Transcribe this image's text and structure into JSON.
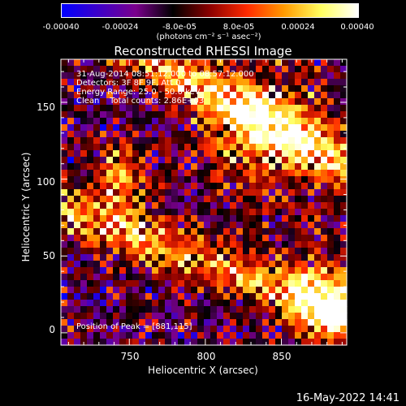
{
  "colorbar": {
    "tick_labels": [
      "-0.00040",
      "-0.00024",
      "-8.0e-05",
      "8.0e-05",
      "0.00024",
      "0.00040"
    ],
    "units": "(photons cm⁻² s⁻¹ asec⁻²)",
    "range": [
      -0.0004,
      0.0004
    ],
    "colors": [
      "#0000ff",
      "#3d00c8",
      "#7a008c",
      "#000000",
      "#8b0000",
      "#ff2a00",
      "#ff9a00",
      "#ffff60",
      "#ffffff"
    ]
  },
  "info": {
    "line1": "31-Aug-2014 08:51:12.000 to 08:57:12.000",
    "line2": "Detectors: 3F 8F 9F, Att 0",
    "line3": "Energy Range: 25.0 - 50.0 keV",
    "line4": "Clean    Total counts: 2.86E+03",
    "peak": "Position of Peak = [881,115]"
  },
  "timestamp": "16-May-2022 14:41",
  "chart_data": {
    "type": "heatmap",
    "title": "Reconstructed RHESSI Image",
    "xlabel": "Heliocentric X (arcsec)",
    "ylabel": "Heliocentric Y (arcsec)",
    "xlim": [
      705,
      893
    ],
    "ylim": [
      -8,
      178
    ],
    "xticks": [
      750,
      800,
      850
    ],
    "yticks": [
      0,
      50,
      100,
      150
    ],
    "peak_position": [
      881,
      115
    ],
    "colorbar_range": [
      -0.0004,
      0.0004
    ]
  }
}
